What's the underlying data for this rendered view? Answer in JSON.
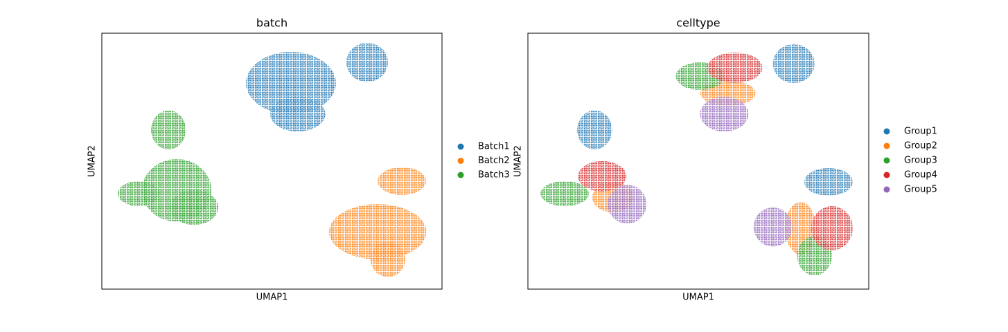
{
  "chart_data": [
    {
      "type": "scatter",
      "title": "batch",
      "xlabel": "UMAP1",
      "ylabel": "UMAP2",
      "xlim": [
        0,
        100
      ],
      "ylim": [
        0,
        100
      ],
      "series": [
        {
          "name": "Batch1",
          "color": "#1f77b4",
          "x": [
            55.6,
            57.6,
            78
          ],
          "y": [
            80.5,
            68.4,
            88.6
          ],
          "x_spread": [
            13.2,
            8.1,
            6.1
          ],
          "y_spread": [
            12.2,
            6.8,
            7.6
          ]
        },
        {
          "name": "Batch2",
          "color": "#ff7f0e",
          "x": [
            88.2,
            81.1,
            84.1
          ],
          "y": [
            42.2,
            22.4,
            11.6
          ],
          "x_spread": [
            7.1,
            14.3,
            5.1
          ],
          "y_spread": [
            5.4,
            10.8,
            6.8
          ]
        },
        {
          "name": "Batch3",
          "color": "#2ca02c",
          "x": [
            19.6,
            22,
            10.8,
            27.1
          ],
          "y": [
            62.2,
            38.6,
            37.3,
            31.9
          ],
          "x_spread": [
            5.1,
            10.2,
            6.1,
            7.1
          ],
          "y_spread": [
            7.6,
            12.2,
            4.9,
            6.8
          ]
        }
      ]
    },
    {
      "type": "scatter",
      "title": "celltype",
      "xlabel": "UMAP1",
      "ylabel": "UMAP2",
      "xlim": [
        0,
        100
      ],
      "ylim": [
        0,
        100
      ],
      "series": [
        {
          "name": "Group1",
          "color": "#1f77b4",
          "x": [
            78,
            19.6,
            88.2
          ],
          "y": [
            88.1,
            62.2,
            41.9
          ],
          "x_spread": [
            6.1,
            5.1,
            7.1
          ],
          "y_spread": [
            7.6,
            7.6,
            5.4
          ]
        },
        {
          "name": "Group2",
          "color": "#ff7f0e",
          "x": [
            58.7,
            25,
            80
          ],
          "y": [
            76.5,
            35.9,
            23.8
          ],
          "x_spread": [
            8.1,
            6.1,
            4.5
          ],
          "y_spread": [
            4.9,
            5.9,
            10.3
          ]
        },
        {
          "name": "Group3",
          "color": "#2ca02c",
          "x": [
            50.5,
            10.8,
            84.1
          ],
          "y": [
            83.2,
            37.3,
            13
          ],
          "x_spread": [
            7.1,
            7.1,
            5.1
          ],
          "y_spread": [
            5.4,
            4.9,
            7.6
          ]
        },
        {
          "name": "Group4",
          "color": "#d62728",
          "x": [
            60.7,
            21.8,
            89.2
          ],
          "y": [
            86.5,
            44.1,
            23.8
          ],
          "x_spread": [
            8.1,
            7.1,
            6.1
          ],
          "y_spread": [
            5.9,
            5.9,
            8.6
          ]
        },
        {
          "name": "Group5",
          "color": "#9467bd",
          "x": [
            57.6,
            29.1,
            71.9
          ],
          "y": [
            68.4,
            33.2,
            24.3
          ],
          "x_spread": [
            7.1,
            5.7,
            5.7
          ],
          "y_spread": [
            6.8,
            7.6,
            7.6
          ]
        }
      ]
    }
  ]
}
